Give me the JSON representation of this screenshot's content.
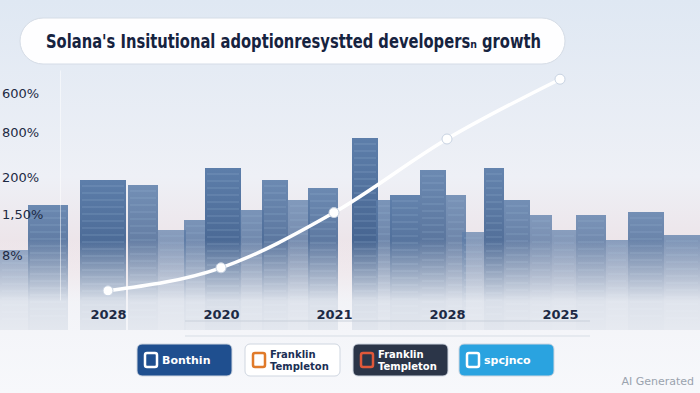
{
  "chart_data": {
    "type": "line",
    "title": "Solana's Insitutional adoptionresystted developersₙ growth",
    "categories": [
      "2028",
      "2020",
      "2021",
      "2028",
      "2025"
    ],
    "values": [
      4,
      14,
      38,
      70,
      96
    ],
    "ylim": [
      0,
      100
    ],
    "yticks": [],
    "tick_labels": "x",
    "color": "#ffffff",
    "marker": "circle",
    "y_labels": [
      "600%",
      "800%",
      "200%",
      "1,50%",
      "8%"
    ],
    "logos": [
      "Bonthin",
      "Franklin Templeton",
      "Franklin Templeton",
      "spcjnco"
    ],
    "watermark": "AI Generated"
  }
}
